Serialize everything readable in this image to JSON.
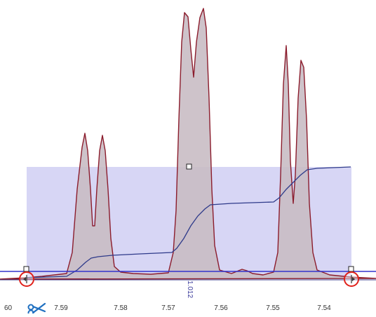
{
  "spectrum": {
    "x_tick_labels": [
      "60",
      "7.59",
      "7.58",
      "7.57",
      "7.56",
      "7.55",
      "7.54"
    ],
    "integral_label": "1.012",
    "icons": {
      "cut_tool": "scissors-icon",
      "left_handle": "integration-start-handle-icon",
      "right_handle": "integration-end-handle-icon"
    },
    "colors": {
      "peak_fill": "#c9bcc4",
      "peak_stroke": "#8b1c2c",
      "integral_region": "#c9c8f2",
      "integral_curve": "#2e3a8a",
      "baseline": "#3333cc",
      "handle_circle": "#e0201a",
      "axis_text": "#333333",
      "cut_tool": "#1e6fc0"
    }
  }
}
